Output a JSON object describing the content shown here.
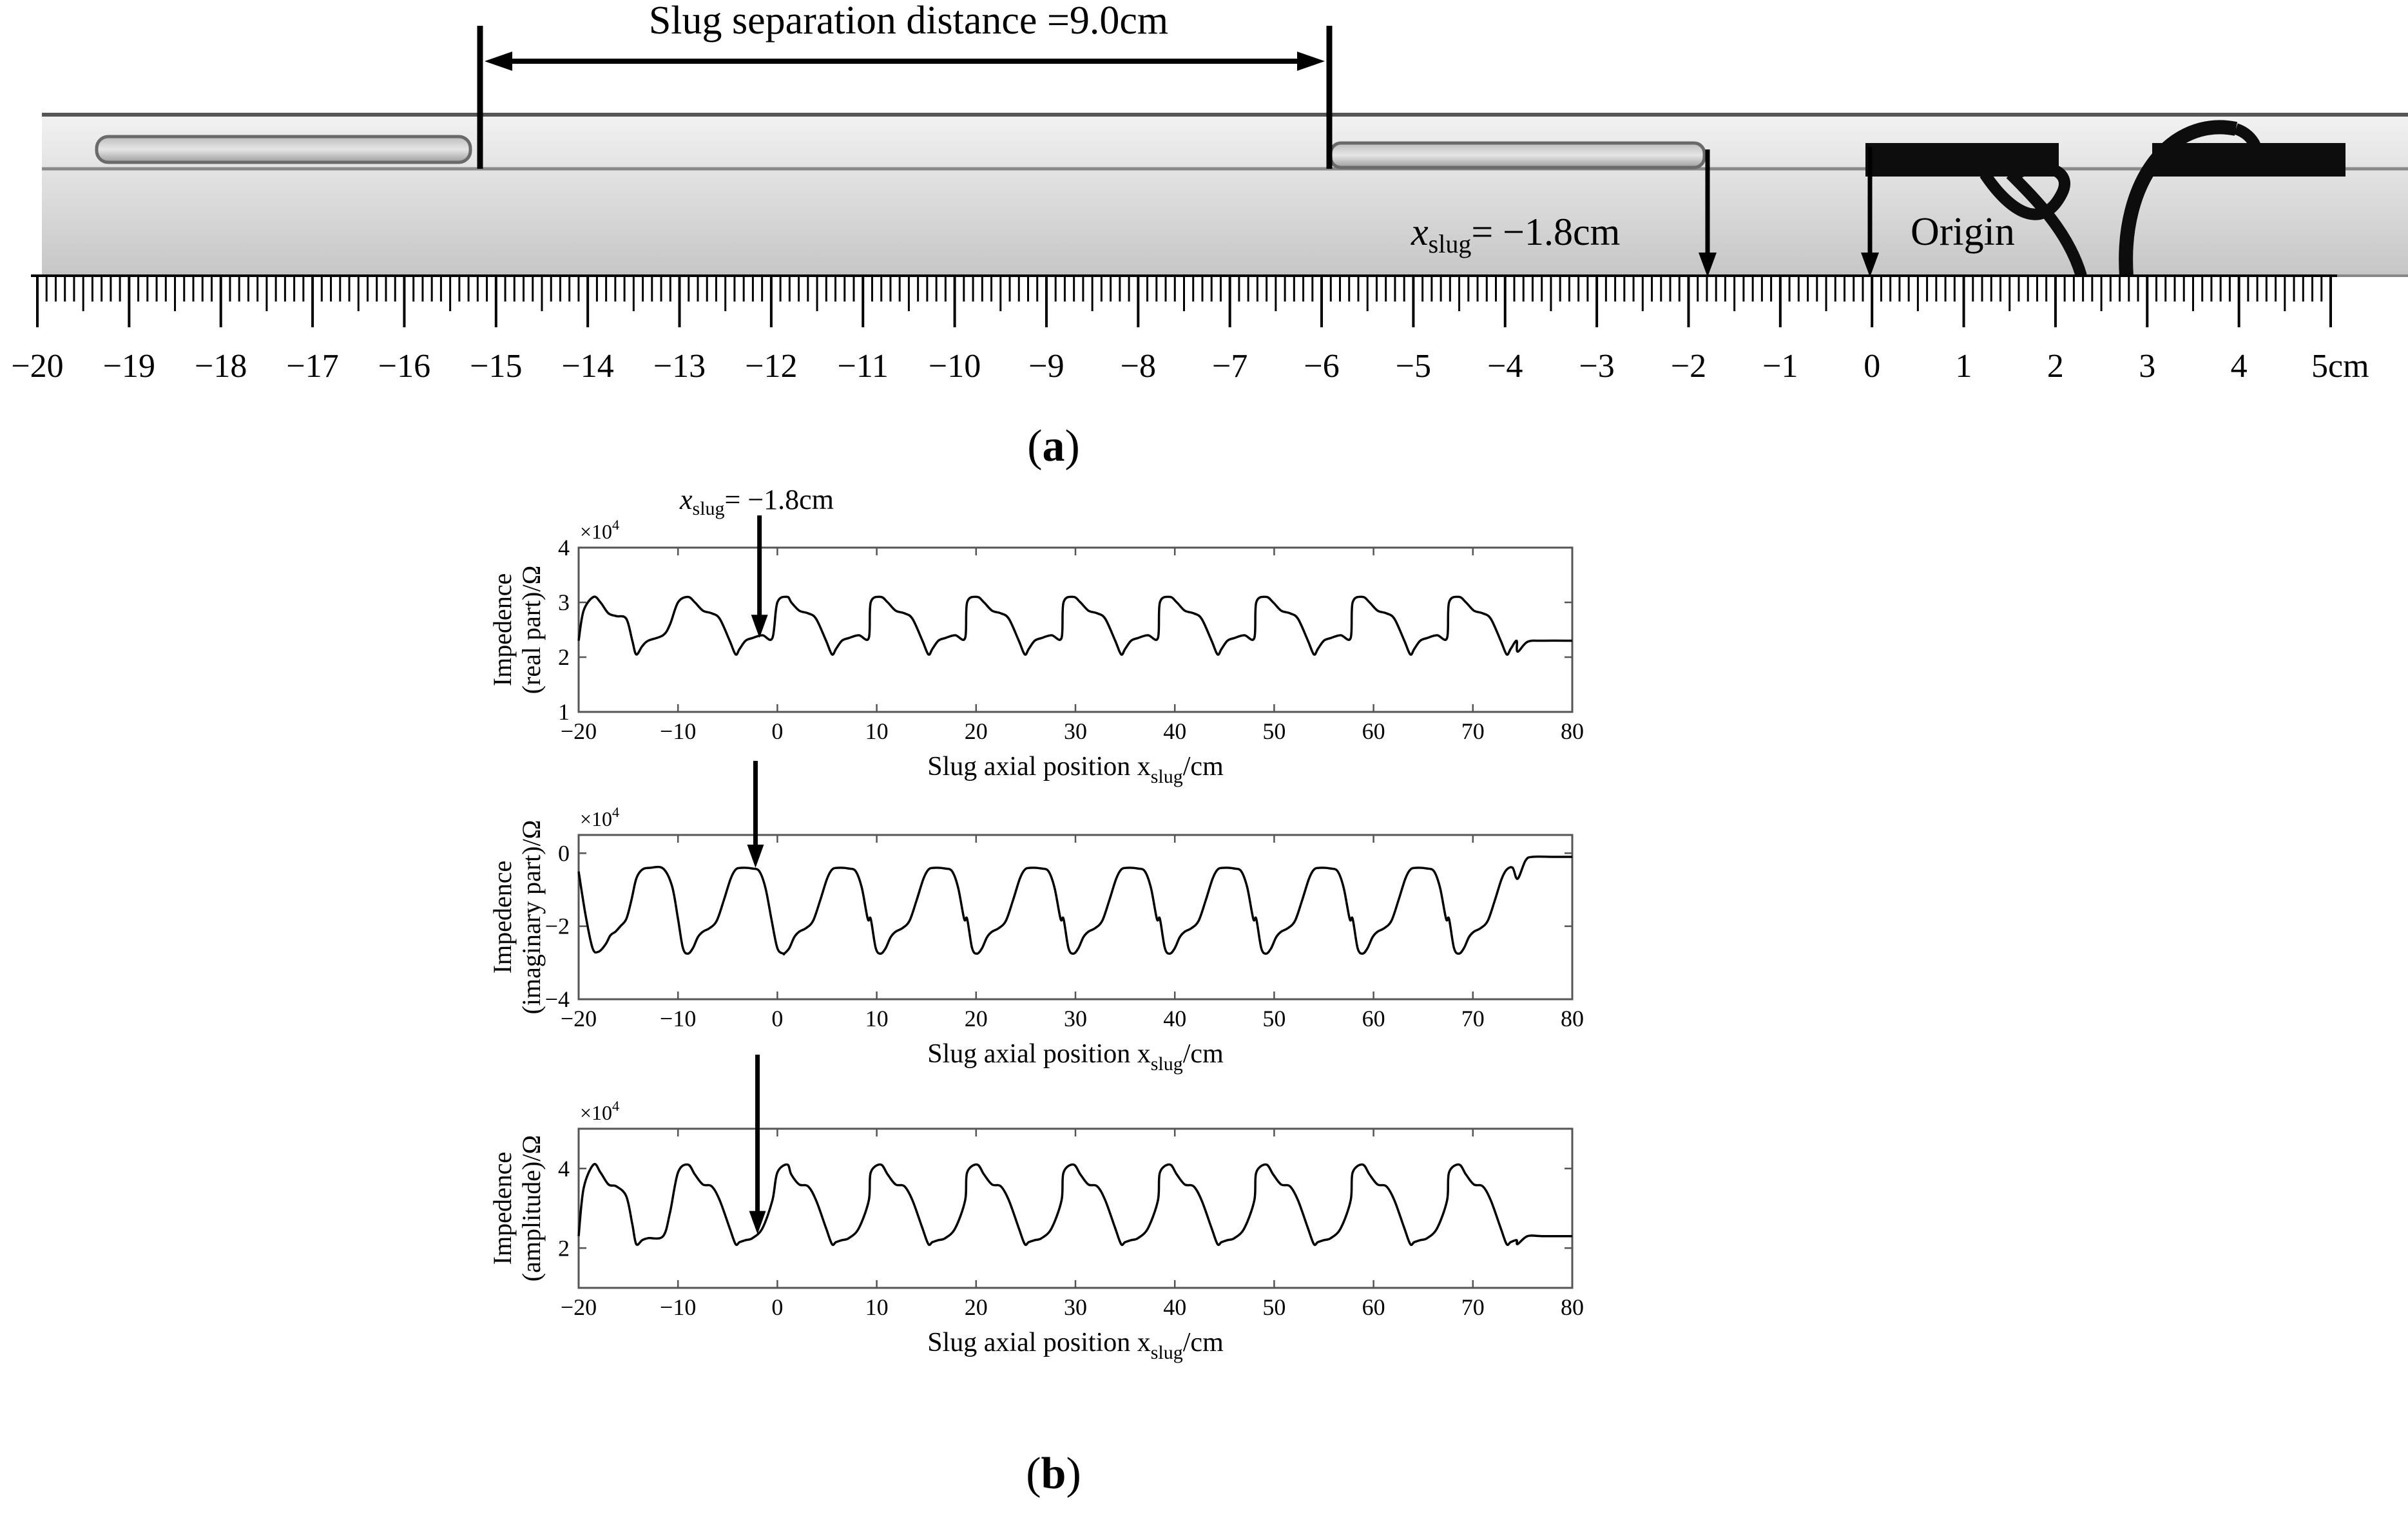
{
  "panel_a": {
    "separation_label": "Slug separation distance =9.0cm",
    "xslug_var": "x",
    "xslug_sub": "slug",
    "xslug_value": "= −1.8cm",
    "origin_label": "Origin",
    "ruler_labels": [
      "−20",
      "−19",
      "−18",
      "−17",
      "−16",
      "−15",
      "−14",
      "−13",
      "−12",
      "−11",
      "−10",
      "−9",
      "−8",
      "−7",
      "−6",
      "−5",
      "−4",
      "−3",
      "−2",
      "−1",
      "0",
      "1",
      "2",
      "3",
      "4",
      "5cm"
    ],
    "ruler_values": [
      -20,
      -19,
      -18,
      -17,
      -16,
      -15,
      -14,
      -13,
      -12,
      -11,
      -10,
      -9,
      -8,
      -7,
      -6,
      -5,
      -4,
      -3,
      -2,
      -1,
      0,
      1,
      2,
      3,
      4,
      5
    ],
    "caption_open": "(",
    "caption_letter": "a",
    "caption_close": ")"
  },
  "panel_b": {
    "arrow_label_var": "x",
    "arrow_label_sub": "slug",
    "arrow_label_value": "= −1.8cm",
    "caption_open": "(",
    "caption_letter": "b",
    "caption_close": ")"
  },
  "chart_data": [
    {
      "type": "line",
      "exponent_label": "×10",
      "exponent_power": "4",
      "ylabel_line1": "Impedence",
      "ylabel_line2": "(real part)/Ω",
      "xlabel_main": "Slug axial position x",
      "xlabel_sub": "slug",
      "xlabel_unit": "/cm",
      "xlim": [
        -20,
        80
      ],
      "ylim": [
        1,
        4
      ],
      "xticks": [
        -20,
        -10,
        0,
        10,
        20,
        30,
        40,
        50,
        60,
        70,
        80
      ],
      "xtick_labels": [
        "−20",
        "−10",
        "0",
        "10",
        "20",
        "30",
        "40",
        "50",
        "60",
        "70",
        "80"
      ],
      "yticks": [
        1,
        2,
        3,
        4
      ],
      "ytick_labels": [
        "1",
        "2",
        "3",
        "4"
      ],
      "shape": "real",
      "arrow_x": -1.8,
      "x": [
        -20,
        -19.5,
        -18.5,
        -17.8,
        -17,
        -16.2,
        -15.2,
        -14.6,
        -14.2,
        -13.6,
        -13,
        -11.5,
        -10.8,
        -10,
        -9,
        -8.3,
        -7.5,
        -6.6,
        -5.8,
        -4.8,
        -4.2,
        -3.8,
        -3.2,
        -2.5,
        -1.5,
        -0.5,
        0,
        1
      ],
      "y": [
        2.3,
        2.85,
        3.1,
        3.0,
        2.8,
        2.75,
        2.7,
        2.3,
        2.05,
        2.2,
        2.3,
        2.4,
        2.6,
        3.0,
        3.1,
        3.0,
        2.85,
        2.8,
        2.7,
        2.3,
        2.05,
        2.15,
        2.3,
        2.35,
        2.4,
        2.35,
        3.0,
        3.1
      ],
      "period": 9.7,
      "periodic_from": -10,
      "periodic_to": 74.5,
      "tail": {
        "x": [
          74.5,
          75.5,
          77,
          80
        ],
        "y": [
          2.1,
          2.28,
          2.3,
          2.3
        ]
      }
    },
    {
      "type": "line",
      "exponent_label": "×10",
      "exponent_power": "4",
      "ylabel_line1": "Impedence",
      "ylabel_line2": "(imaginary part)/Ω",
      "xlabel_main": "Slug axial position x",
      "xlabel_sub": "slug",
      "xlabel_unit": "/cm",
      "xlim": [
        -20,
        80
      ],
      "ylim": [
        -4,
        0.5
      ],
      "xticks": [
        -20,
        -10,
        0,
        10,
        20,
        30,
        40,
        50,
        60,
        70,
        80
      ],
      "xtick_labels": [
        "−20",
        "−10",
        "0",
        "10",
        "20",
        "30",
        "40",
        "50",
        "60",
        "70",
        "80"
      ],
      "yticks": [
        -4,
        -2,
        0
      ],
      "ytick_labels": [
        "−4",
        "−2",
        "0"
      ],
      "shape": "imaginary",
      "arrow_x": -2.2,
      "x": [
        -20,
        -19.3,
        -18.6,
        -18,
        -17.3,
        -16.8,
        -16.3,
        -15.8,
        -15.2,
        -14.7,
        -14.2,
        -13.6,
        -12.8,
        -11.5,
        -10.6,
        -10,
        -9.5,
        -9,
        -8.5,
        -8,
        -7.5,
        -6.8,
        -6.1,
        -5.4,
        -4.7,
        -4.2,
        -3.6,
        -2.5,
        -1.8,
        -1.2,
        -0.6,
        0,
        0.6
      ],
      "y": [
        -0.5,
        -1.7,
        -2.6,
        -2.7,
        -2.5,
        -2.25,
        -2.15,
        -2.0,
        -1.8,
        -1.3,
        -0.7,
        -0.45,
        -0.4,
        -0.42,
        -0.9,
        -1.8,
        -2.6,
        -2.75,
        -2.6,
        -2.3,
        -2.15,
        -2.05,
        -1.85,
        -1.3,
        -0.7,
        -0.45,
        -0.4,
        -0.42,
        -0.5,
        -0.95,
        -1.8,
        -2.6,
        -2.75
      ],
      "period": 9.7,
      "periodic_from": -10,
      "periodic_to": 74.5,
      "tail": {
        "x": [
          74.5,
          75.3,
          76,
          78,
          80
        ],
        "y": [
          -0.7,
          -0.2,
          -0.1,
          -0.1,
          -0.1
        ]
      }
    },
    {
      "type": "line",
      "exponent_label": "×10",
      "exponent_power": "4",
      "ylabel_line1": "Impedence",
      "ylabel_line2": "(amplitude)/Ω",
      "xlabel_main": "Slug axial position x",
      "xlabel_sub": "slug",
      "xlabel_unit": "/cm",
      "xlim": [
        -20,
        80
      ],
      "ylim": [
        1,
        5
      ],
      "xticks": [
        -20,
        -10,
        0,
        10,
        20,
        30,
        40,
        50,
        60,
        70,
        80
      ],
      "xtick_labels": [
        "−20",
        "−10",
        "0",
        "10",
        "20",
        "30",
        "40",
        "50",
        "60",
        "70",
        "80"
      ],
      "yticks": [
        2,
        4
      ],
      "ytick_labels": [
        "2",
        "4"
      ],
      "shape": "amplitude",
      "arrow_x": -2.0,
      "x": [
        -20,
        -19.5,
        -18.5,
        -17.8,
        -17,
        -16.2,
        -15.2,
        -14.6,
        -14.2,
        -13.6,
        -13,
        -11.5,
        -10.8,
        -10,
        -9,
        -8.3,
        -7.5,
        -6.6,
        -5.8,
        -4.8,
        -4.2,
        -3.8,
        -3.2,
        -2.5,
        -1.5,
        -0.5,
        0,
        1
      ],
      "y": [
        2.3,
        3.5,
        4.1,
        3.9,
        3.6,
        3.55,
        3.3,
        2.6,
        2.1,
        2.2,
        2.25,
        2.3,
        2.9,
        3.9,
        4.1,
        3.85,
        3.6,
        3.55,
        3.2,
        2.5,
        2.1,
        2.15,
        2.2,
        2.25,
        2.5,
        3.2,
        3.9,
        4.1
      ],
      "period": 9.7,
      "periodic_from": -10,
      "periodic_to": 74.5,
      "tail": {
        "x": [
          74.5,
          75.5,
          77,
          80
        ],
        "y": [
          2.1,
          2.3,
          2.3,
          2.3
        ]
      }
    }
  ]
}
